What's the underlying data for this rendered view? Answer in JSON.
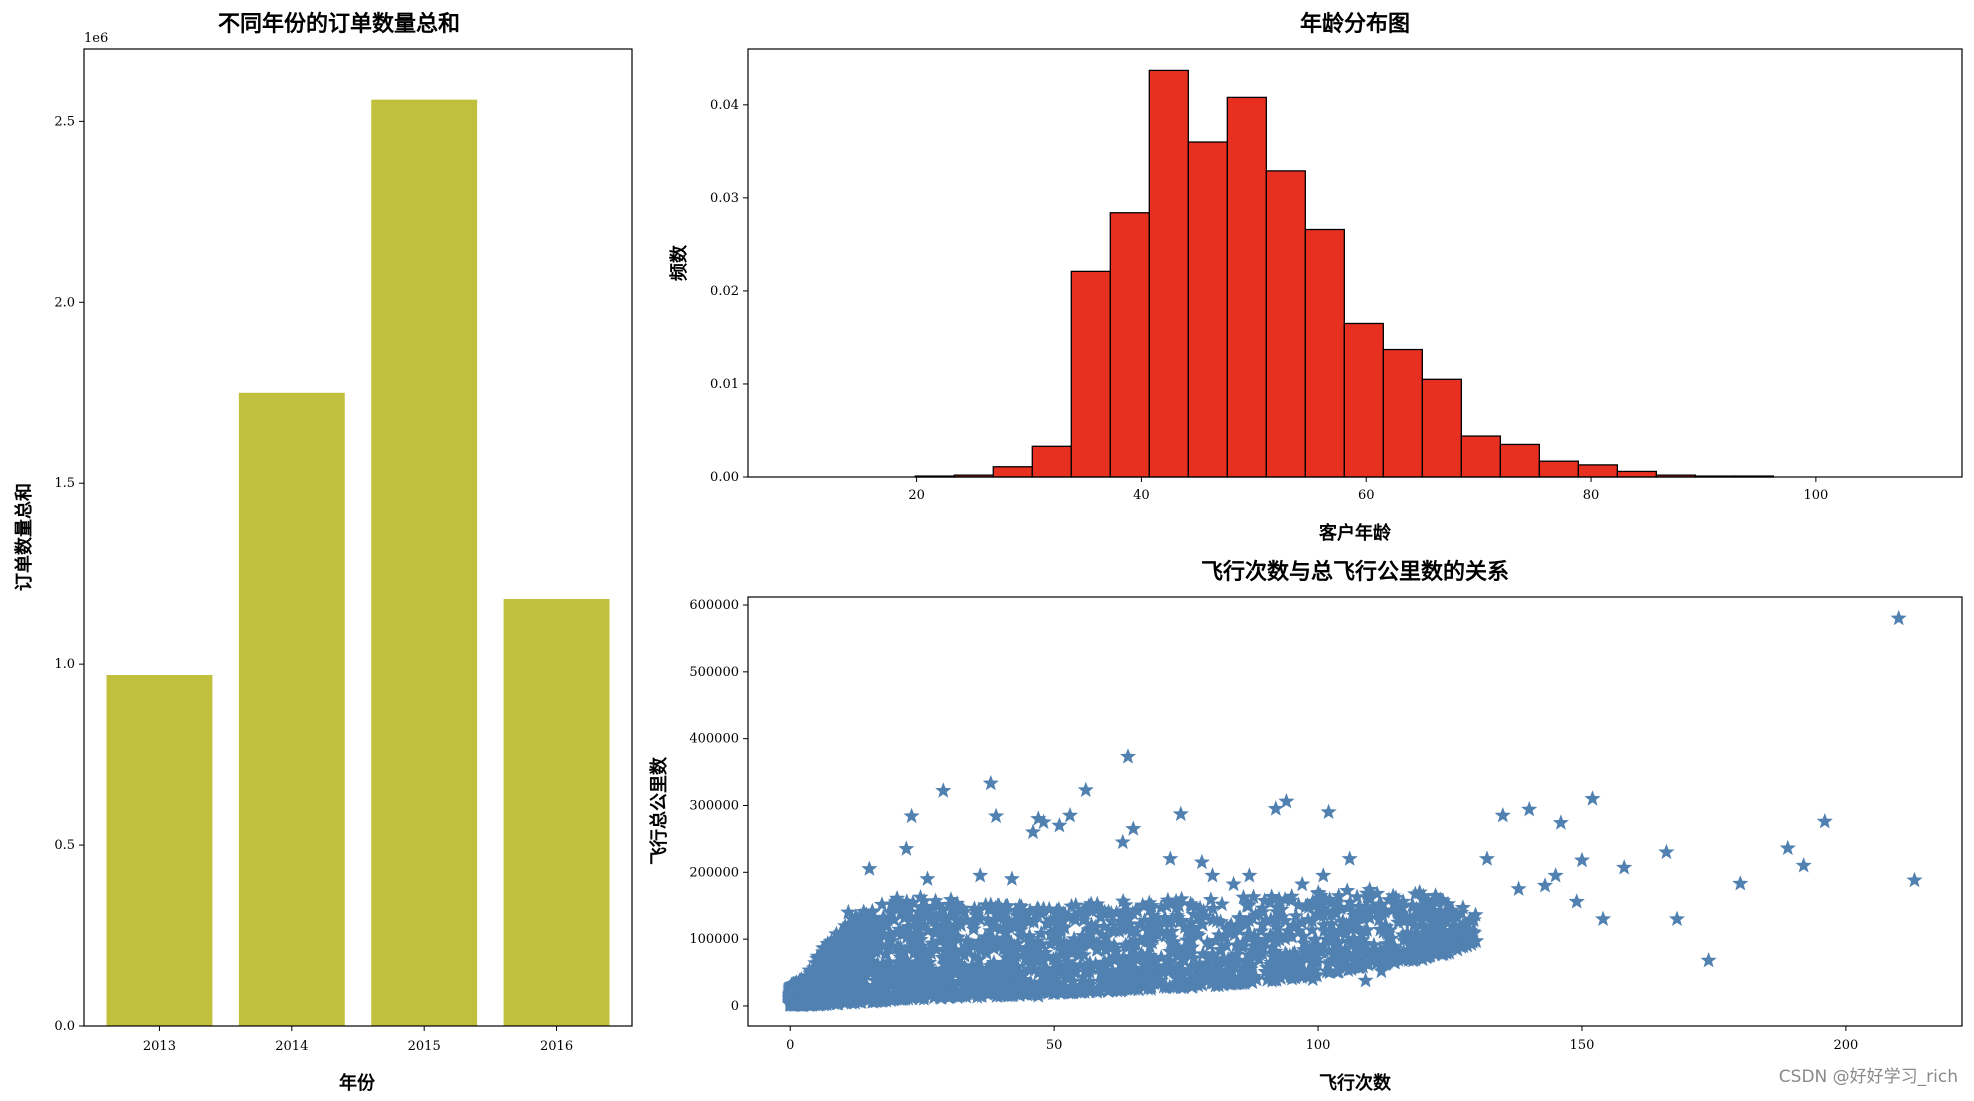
{
  "chart_data": [
    {
      "type": "bar",
      "title": "不同年份的订单数量总和",
      "xlabel": "年份",
      "ylabel": "订单数量总和",
      "offset_text": "1e6",
      "categories": [
        "2013",
        "2014",
        "2015",
        "2016"
      ],
      "values": [
        970000,
        1750000,
        2560000,
        1180000
      ],
      "ylim": [
        0,
        2700000
      ],
      "yticks": [
        0,
        500000,
        1000000,
        1500000,
        2000000,
        2500000
      ],
      "ytick_labels": [
        "0.0",
        "0.5",
        "1.0",
        "1.5",
        "2.0",
        "2.5"
      ],
      "color": "#c0bf3e",
      "grid": false
    },
    {
      "type": "histogram",
      "title": "年龄分布图",
      "xlabel": "客户年龄",
      "ylabel": "频数",
      "xlim": [
        5,
        113
      ],
      "ylim": [
        0,
        0.046
      ],
      "xticks": [
        20,
        40,
        60,
        80,
        100
      ],
      "yticks": [
        0,
        0.01,
        0.02,
        0.03,
        0.04
      ],
      "ytick_labels": [
        "0.00",
        "0.01",
        "0.02",
        "0.03",
        "0.04"
      ],
      "bin_start": 6.0,
      "bin_width": 3.47,
      "values": [
        0,
        0,
        0,
        0,
        0.0001,
        0.0002,
        0.0011,
        0.0033,
        0.0221,
        0.0284,
        0.0437,
        0.036,
        0.0408,
        0.0329,
        0.0266,
        0.0165,
        0.0137,
        0.0105,
        0.0044,
        0.0035,
        0.0017,
        0.0013,
        0.0006,
        0.0002,
        0.0001,
        0.0001,
        0,
        0,
        0,
        0
      ],
      "color": "#e83020",
      "edgecolor": "#000000",
      "grid": false
    },
    {
      "type": "scatter",
      "title": "飞行次数与总飞行公里数的关系",
      "xlabel": "飞行次数",
      "ylabel": "飞行总公里数",
      "xlim": [
        -8,
        222
      ],
      "ylim": [
        -30000,
        612000
      ],
      "xticks": [
        0,
        50,
        100,
        150,
        200
      ],
      "yticks": [
        0,
        100000,
        200000,
        300000,
        400000,
        500000,
        600000
      ],
      "marker": "star",
      "color": "#5181b0",
      "grid": false,
      "points": [
        [
          210,
          580000
        ],
        [
          213,
          188000
        ],
        [
          196,
          276000
        ],
        [
          189,
          236000
        ],
        [
          192,
          210000
        ],
        [
          180,
          183000
        ],
        [
          174,
          68000
        ],
        [
          168,
          130000
        ],
        [
          166,
          230000
        ],
        [
          158,
          207000
        ],
        [
          152,
          310000
        ],
        [
          154,
          130000
        ],
        [
          149,
          156000
        ],
        [
          150,
          218000
        ],
        [
          146,
          274000
        ],
        [
          145,
          195000
        ],
        [
          140,
          294000
        ],
        [
          143,
          180000
        ],
        [
          135,
          285000
        ],
        [
          138,
          175000
        ],
        [
          132,
          220000
        ],
        [
          120,
          135000
        ],
        [
          116,
          147000
        ],
        [
          112,
          52000
        ],
        [
          106,
          220000
        ],
        [
          102,
          290000
        ],
        [
          101,
          195000
        ],
        [
          97,
          182000
        ],
        [
          94,
          306000
        ],
        [
          92,
          295000
        ],
        [
          87,
          195000
        ],
        [
          84,
          182000
        ],
        [
          80,
          195000
        ],
        [
          78,
          215000
        ],
        [
          74,
          287000
        ],
        [
          72,
          220000
        ],
        [
          65,
          265000
        ],
        [
          64,
          373000
        ],
        [
          63,
          245000
        ],
        [
          56,
          323000
        ],
        [
          53,
          285000
        ],
        [
          51,
          270000
        ],
        [
          48,
          275000
        ],
        [
          47,
          280000
        ],
        [
          46,
          260000
        ],
        [
          42,
          190000
        ],
        [
          39,
          284000
        ],
        [
          38,
          333000
        ],
        [
          36,
          195000
        ],
        [
          29,
          322000
        ],
        [
          26,
          190000
        ],
        [
          23,
          284000
        ],
        [
          22,
          235000
        ],
        [
          15,
          205000
        ],
        [
          11,
          140000
        ],
        [
          109,
          38000
        ],
        [
          99,
          40000
        ],
        [
          47,
          15000
        ],
        [
          36,
          18000
        ]
      ],
      "density_envelope": [
        [
          0,
          2000,
          30000
        ],
        [
          3,
          1000,
          45000
        ],
        [
          6,
          2000,
          85000
        ],
        [
          10,
          4000,
          120000
        ],
        [
          15,
          6000,
          150000
        ],
        [
          20,
          9000,
          165000
        ],
        [
          30,
          12000,
          160000
        ],
        [
          40,
          15000,
          150000
        ],
        [
          50,
          19000,
          150000
        ],
        [
          60,
          22000,
          155000
        ],
        [
          70,
          26000,
          160000
        ],
        [
          80,
          30000,
          160000
        ],
        [
          90,
          36000,
          165000
        ],
        [
          100,
          45000,
          170000
        ],
        [
          110,
          60000,
          175000
        ],
        [
          120,
          70000,
          172000
        ],
        [
          125,
          80000,
          160000
        ],
        [
          130,
          95000,
          140000
        ]
      ]
    }
  ],
  "watermark": "CSDN @好好学习_rich"
}
